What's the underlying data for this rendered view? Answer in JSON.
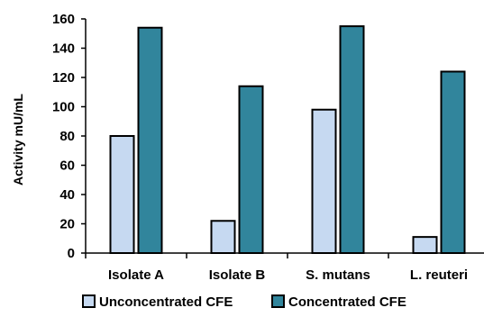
{
  "chart_data": {
    "type": "bar",
    "categories": [
      "Isolate A",
      "Isolate B",
      "S. mutans",
      "L. reuteri"
    ],
    "series": [
      {
        "name": "Unconcentrated CFE",
        "values": [
          80,
          22,
          98,
          11
        ],
        "color": "#c6d9f1"
      },
      {
        "name": "Concentrated CFE",
        "values": [
          154,
          114,
          155,
          124
        ],
        "color": "#31859c"
      }
    ],
    "ylabel": "Activity mU/mL",
    "xlabel": "",
    "ylim": [
      0,
      160
    ],
    "yticks": [
      0,
      20,
      40,
      60,
      80,
      100,
      120,
      140,
      160
    ],
    "grid": false,
    "legend_position": "bottom"
  }
}
